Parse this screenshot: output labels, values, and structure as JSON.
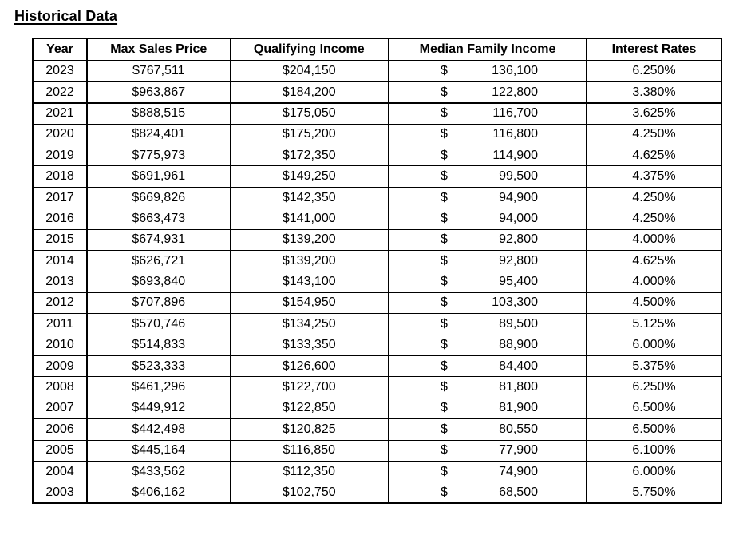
{
  "page": {
    "title": "Historical Data"
  },
  "colors": {
    "background": "#ffffff",
    "text": "#000000",
    "border": "#000000"
  },
  "table": {
    "currency_symbol": "$",
    "columns": [
      "Year",
      "Max Sales Price",
      "Qualifying Income",
      "Median Family Income",
      "Interest Rates"
    ],
    "rows": [
      {
        "year": "2023",
        "max_sales_price": "$767,511",
        "qualifying_income": "$204,150",
        "median_family_income": "136,100",
        "interest_rate": "6.250%"
      },
      {
        "year": "2022",
        "max_sales_price": "$963,867",
        "qualifying_income": "$184,200",
        "median_family_income": "122,800",
        "interest_rate": "3.380%"
      },
      {
        "year": "2021",
        "max_sales_price": "$888,515",
        "qualifying_income": "$175,050",
        "median_family_income": "116,700",
        "interest_rate": "3.625%"
      },
      {
        "year": "2020",
        "max_sales_price": "$824,401",
        "qualifying_income": "$175,200",
        "median_family_income": "116,800",
        "interest_rate": "4.250%"
      },
      {
        "year": "2019",
        "max_sales_price": "$775,973",
        "qualifying_income": "$172,350",
        "median_family_income": "114,900",
        "interest_rate": "4.625%"
      },
      {
        "year": "2018",
        "max_sales_price": "$691,961",
        "qualifying_income": "$149,250",
        "median_family_income": "99,500",
        "interest_rate": "4.375%"
      },
      {
        "year": "2017",
        "max_sales_price": "$669,826",
        "qualifying_income": "$142,350",
        "median_family_income": "94,900",
        "interest_rate": "4.250%"
      },
      {
        "year": "2016",
        "max_sales_price": "$663,473",
        "qualifying_income": "$141,000",
        "median_family_income": "94,000",
        "interest_rate": "4.250%"
      },
      {
        "year": "2015",
        "max_sales_price": "$674,931",
        "qualifying_income": "$139,200",
        "median_family_income": "92,800",
        "interest_rate": "4.000%"
      },
      {
        "year": "2014",
        "max_sales_price": "$626,721",
        "qualifying_income": "$139,200",
        "median_family_income": "92,800",
        "interest_rate": "4.625%"
      },
      {
        "year": "2013",
        "max_sales_price": "$693,840",
        "qualifying_income": "$143,100",
        "median_family_income": "95,400",
        "interest_rate": "4.000%"
      },
      {
        "year": "2012",
        "max_sales_price": "$707,896",
        "qualifying_income": "$154,950",
        "median_family_income": "103,300",
        "interest_rate": "4.500%"
      },
      {
        "year": "2011",
        "max_sales_price": "$570,746",
        "qualifying_income": "$134,250",
        "median_family_income": "89,500",
        "interest_rate": "5.125%"
      },
      {
        "year": "2010",
        "max_sales_price": "$514,833",
        "qualifying_income": "$133,350",
        "median_family_income": "88,900",
        "interest_rate": "6.000%"
      },
      {
        "year": "2009",
        "max_sales_price": "$523,333",
        "qualifying_income": "$126,600",
        "median_family_income": "84,400",
        "interest_rate": "5.375%"
      },
      {
        "year": "2008",
        "max_sales_price": "$461,296",
        "qualifying_income": "$122,700",
        "median_family_income": "81,800",
        "interest_rate": "6.250%"
      },
      {
        "year": "2007",
        "max_sales_price": "$449,912",
        "qualifying_income": "$122,850",
        "median_family_income": "81,900",
        "interest_rate": "6.500%"
      },
      {
        "year": "2006",
        "max_sales_price": "$442,498",
        "qualifying_income": "$120,825",
        "median_family_income": "80,550",
        "interest_rate": "6.500%"
      },
      {
        "year": "2005",
        "max_sales_price": "$445,164",
        "qualifying_income": "$116,850",
        "median_family_income": "77,900",
        "interest_rate": "6.100%"
      },
      {
        "year": "2004",
        "max_sales_price": "$433,562",
        "qualifying_income": "$112,350",
        "median_family_income": "74,900",
        "interest_rate": "6.000%"
      },
      {
        "year": "2003",
        "max_sales_price": "$406,162",
        "qualifying_income": "$102,750",
        "median_family_income": "68,500",
        "interest_rate": "5.750%"
      }
    ]
  }
}
